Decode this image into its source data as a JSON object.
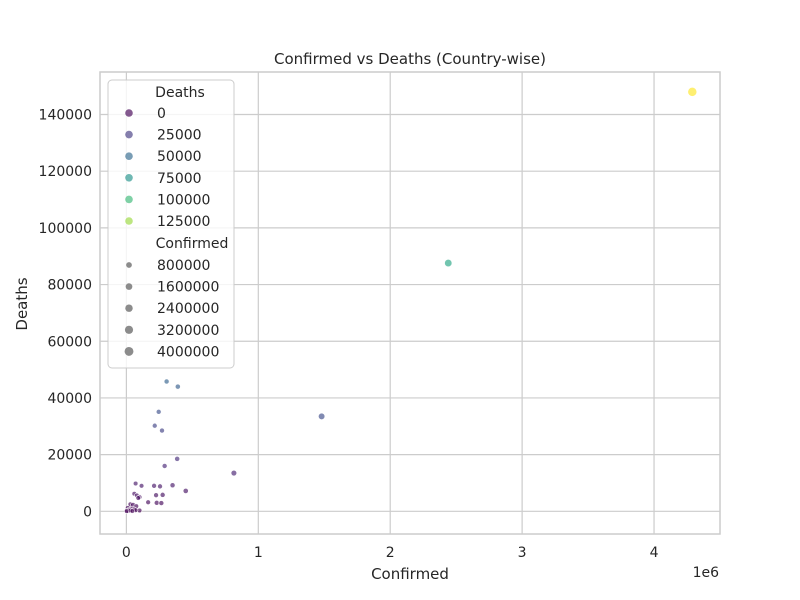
{
  "chart_data": {
    "type": "scatter",
    "title": "Confirmed vs Deaths (Country-wise)",
    "xlabel": "Confirmed",
    "ylabel": "Deaths",
    "x_offset_label": "1e6",
    "x_scale_factor": 1000000,
    "xlim": [
      -200000,
      4500000
    ],
    "ylim": [
      -8000,
      155000
    ],
    "x_ticks": [
      0,
      1000000,
      2000000,
      3000000,
      4000000
    ],
    "x_tick_labels": [
      "0",
      "1",
      "2",
      "3",
      "4"
    ],
    "y_ticks": [
      0,
      20000,
      40000,
      60000,
      80000,
      100000,
      120000,
      140000
    ],
    "y_tick_labels": [
      "0",
      "20000",
      "40000",
      "60000",
      "80000",
      "100000",
      "120000",
      "140000"
    ],
    "grid": true,
    "hue": "Deaths",
    "size": "Confirmed",
    "colormap": "viridis",
    "hue_range": [
      0,
      148000
    ],
    "size_range": [
      0,
      4300000
    ],
    "points": [
      {
        "x": 4290000,
        "y": 148000
      },
      {
        "x": 2440000,
        "y": 87600
      },
      {
        "x": 1480000,
        "y": 33500
      },
      {
        "x": 305000,
        "y": 45800
      },
      {
        "x": 390000,
        "y": 44000
      },
      {
        "x": 245000,
        "y": 35100
      },
      {
        "x": 215000,
        "y": 30200
      },
      {
        "x": 270000,
        "y": 28500
      },
      {
        "x": 385000,
        "y": 18500
      },
      {
        "x": 290000,
        "y": 16000
      },
      {
        "x": 815000,
        "y": 13500
      },
      {
        "x": 70000,
        "y": 9800
      },
      {
        "x": 115000,
        "y": 9000
      },
      {
        "x": 210000,
        "y": 9000
      },
      {
        "x": 255000,
        "y": 8800
      },
      {
        "x": 350000,
        "y": 9200
      },
      {
        "x": 450000,
        "y": 7200
      },
      {
        "x": 60000,
        "y": 6200
      },
      {
        "x": 80000,
        "y": 5600
      },
      {
        "x": 100000,
        "y": 5000
      },
      {
        "x": 90000,
        "y": 4700
      },
      {
        "x": 225000,
        "y": 5700
      },
      {
        "x": 275000,
        "y": 5800
      },
      {
        "x": 165000,
        "y": 3200
      },
      {
        "x": 230000,
        "y": 3000
      },
      {
        "x": 265000,
        "y": 2900
      },
      {
        "x": 30000,
        "y": 2500
      },
      {
        "x": 50000,
        "y": 2300
      },
      {
        "x": 75000,
        "y": 1800
      },
      {
        "x": 10000,
        "y": 1200
      },
      {
        "x": 40000,
        "y": 1000
      },
      {
        "x": 20000,
        "y": 600
      },
      {
        "x": 60000,
        "y": 700
      },
      {
        "x": 100000,
        "y": 300
      },
      {
        "x": 5000,
        "y": 200
      },
      {
        "x": 15000,
        "y": 100
      },
      {
        "x": 2000,
        "y": 50
      },
      {
        "x": 30000,
        "y": 300
      },
      {
        "x": 70000,
        "y": 400
      },
      {
        "x": 45000,
        "y": 100
      }
    ],
    "legend": {
      "placement": "upper-left",
      "hue_title": "Deaths",
      "hue_entries": [
        {
          "label": "0",
          "value": 0
        },
        {
          "label": "25000",
          "value": 25000
        },
        {
          "label": "50000",
          "value": 50000
        },
        {
          "label": "75000",
          "value": 75000
        },
        {
          "label": "100000",
          "value": 100000
        },
        {
          "label": "125000",
          "value": 125000
        }
      ],
      "size_title": "Confirmed",
      "size_entries": [
        {
          "label": "800000",
          "value": 800000
        },
        {
          "label": "1600000",
          "value": 1600000
        },
        {
          "label": "2400000",
          "value": 2400000
        },
        {
          "label": "3200000",
          "value": 3200000
        },
        {
          "label": "4000000",
          "value": 4000000
        }
      ]
    },
    "colors": {
      "grid": "#cccccc",
      "axes_frame": "#cccccc",
      "legend_edge": "#cccccc",
      "size_marker": "#808080"
    }
  }
}
